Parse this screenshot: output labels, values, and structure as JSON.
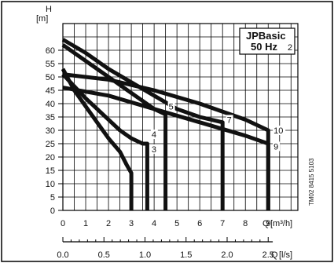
{
  "chart_data": {
    "type": "line",
    "title": "JPBasic",
    "subtitle": "50 Hz",
    "subtitle_suffix": "2",
    "y_unit_symbol": "H",
    "y_unit": "[m]",
    "x_unit_symbol": "Q",
    "x_unit": "[m³/h]",
    "x2_unit_symbol": "Q",
    "x2_unit": "[l/s]",
    "x_ticks": [
      "0",
      "1",
      "2",
      "3",
      "4",
      "5",
      "6",
      "7",
      "8",
      "9"
    ],
    "x_tick_values": [
      0,
      1,
      2,
      3,
      4,
      5,
      6,
      7,
      8,
      9
    ],
    "x2_ticks": [
      "0.0",
      "0.5",
      "1.0",
      "1.5",
      "2.0",
      "2.5"
    ],
    "x2_tick_values": [
      0,
      0.5,
      1.0,
      1.5,
      2.0,
      2.5
    ],
    "y_ticks": [
      "0",
      "5",
      "10",
      "15",
      "20",
      "25",
      "30",
      "35",
      "40",
      "45",
      "50",
      "55",
      "60"
    ],
    "y_tick_values": [
      0,
      5,
      10,
      15,
      20,
      25,
      30,
      35,
      40,
      45,
      50,
      55,
      60
    ],
    "xlim": [
      0,
      10.3
    ],
    "ylim": [
      0,
      70
    ],
    "grid": true,
    "side_note": "TM02 8415 5103",
    "series": [
      {
        "label": "3",
        "points": [
          [
            0,
            53
          ],
          [
            0.5,
            45
          ],
          [
            1,
            39
          ],
          [
            1.5,
            33
          ],
          [
            2,
            27
          ],
          [
            2.5,
            22
          ],
          [
            2.8,
            17
          ],
          [
            3.0,
            14
          ],
          [
            3.0,
            0
          ]
        ]
      },
      {
        "label": "4",
        "points": [
          [
            0,
            51
          ],
          [
            1,
            42
          ],
          [
            2,
            34
          ],
          [
            2.5,
            30
          ],
          [
            3,
            27
          ],
          [
            3.5,
            25
          ],
          [
            3.7,
            25
          ],
          [
            3.7,
            0
          ]
        ]
      },
      {
        "label": "5",
        "points": [
          [
            0,
            62
          ],
          [
            1,
            56
          ],
          [
            2,
            50
          ],
          [
            3,
            44
          ],
          [
            4,
            38
          ],
          [
            4.5,
            36
          ],
          [
            4.5,
            0
          ]
        ]
      },
      {
        "label": "7",
        "points": [
          [
            0,
            64
          ],
          [
            1,
            59
          ],
          [
            2,
            53
          ],
          [
            3,
            48
          ],
          [
            4,
            43
          ],
          [
            5,
            38
          ],
          [
            6,
            35
          ],
          [
            7,
            33
          ],
          [
            7,
            0
          ]
        ]
      },
      {
        "label": "9",
        "points": [
          [
            0,
            46
          ],
          [
            2,
            43
          ],
          [
            4,
            38
          ],
          [
            6,
            33
          ],
          [
            8,
            28
          ],
          [
            9,
            25
          ],
          [
            9,
            0
          ]
        ]
      },
      {
        "label": "10",
        "points": [
          [
            0,
            51
          ],
          [
            2,
            49
          ],
          [
            4,
            45
          ],
          [
            6,
            40
          ],
          [
            8,
            34
          ],
          [
            9,
            30
          ],
          [
            9,
            0
          ]
        ]
      }
    ]
  }
}
